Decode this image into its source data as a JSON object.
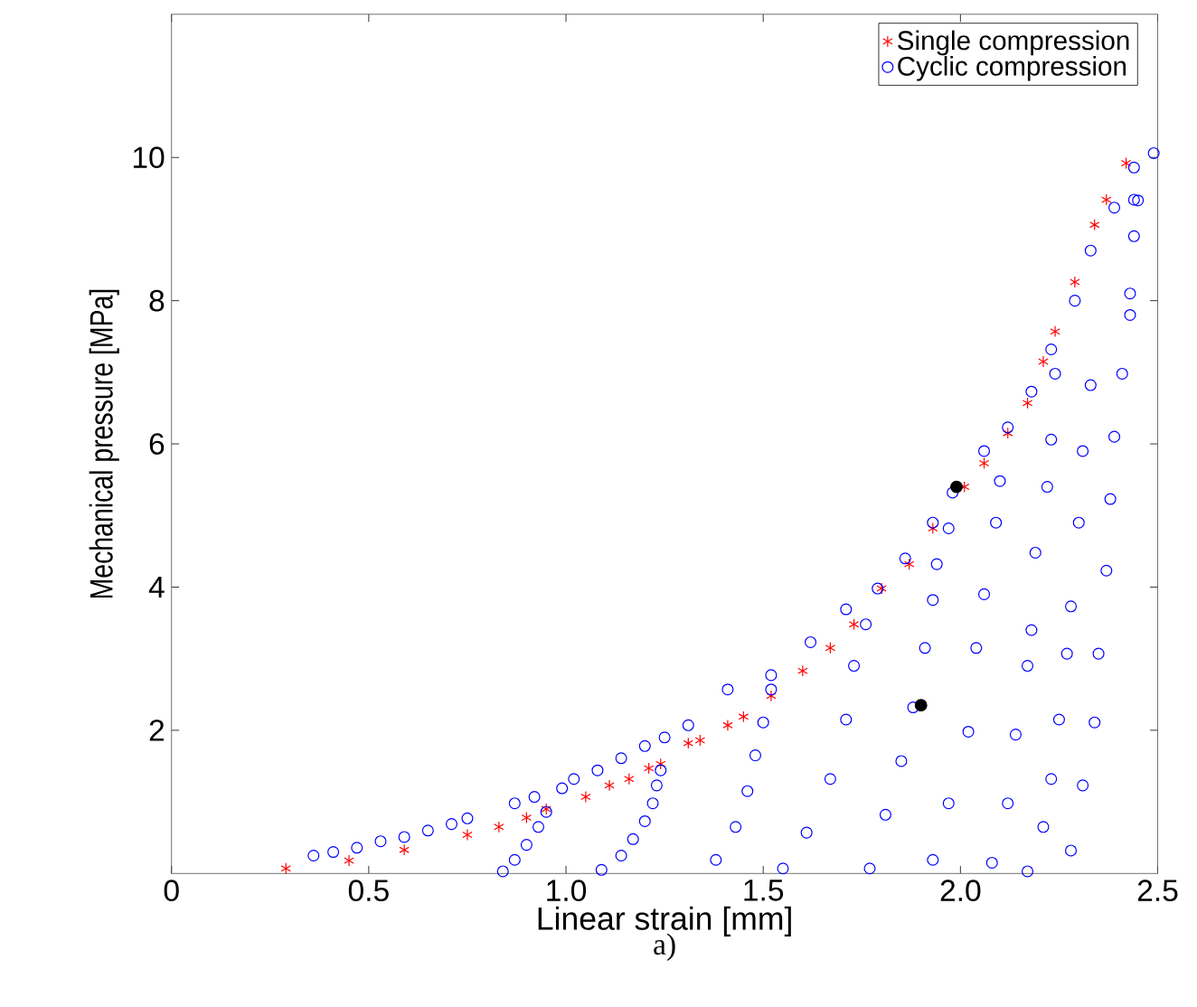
{
  "chart_data": {
    "type": "scatter",
    "xlabel": "Linear strain [mm]",
    "ylabel": "Mechanical pressure  [MPa]",
    "annotations": [
      "a)"
    ],
    "xlim": [
      0,
      2.5
    ],
    "ylim": [
      0,
      12
    ],
    "xticks": [
      0,
      0.5,
      {
        "value": 1,
        "label": "1.0"
      },
      1.5,
      {
        "value": 2,
        "label": "2.0"
      },
      2.5
    ],
    "yticks": [
      2,
      4,
      6,
      8,
      10
    ],
    "legend": "top right",
    "series": [
      {
        "name": "Single compression",
        "color": "#ff0000",
        "marker": "cross",
        "x": [
          0.29,
          0.45,
          0.59,
          0.75,
          0.83,
          0.9,
          0.95,
          1.05,
          1.11,
          1.16,
          1.21,
          1.24,
          1.31,
          1.34,
          1.41,
          1.45,
          1.52,
          1.6,
          1.67,
          1.73,
          1.8,
          1.87,
          1.93,
          2.01,
          2.06,
          2.12,
          2.17,
          2.21,
          2.24,
          2.29,
          2.34,
          2.37,
          2.42
        ],
        "values": [
          0.07,
          0.18,
          0.33,
          0.54,
          0.65,
          0.78,
          0.9,
          1.07,
          1.23,
          1.32,
          1.47,
          1.53,
          1.82,
          1.86,
          2.07,
          2.19,
          2.48,
          2.83,
          3.15,
          3.48,
          3.98,
          4.32,
          4.82,
          5.4,
          5.73,
          6.15,
          6.57,
          7.15,
          7.57,
          8.26,
          9.06,
          9.41,
          9.92
        ]
      },
      {
        "name": "Cyclic compression",
        "color": "#0000ff",
        "marker": "circle",
        "x": [
          0.36,
          0.41,
          0.47,
          0.53,
          0.59,
          0.65,
          0.71,
          0.75,
          0.84,
          0.87,
          0.9,
          0.93,
          0.95,
          0.87,
          0.92,
          0.99,
          1.02,
          1.08,
          1.14,
          1.2,
          1.25,
          1.31,
          1.41,
          1.52,
          1.62,
          1.71,
          1.79,
          1.86,
          1.93,
          1.98,
          2.06,
          2.12,
          2.18,
          2.23,
          2.29,
          2.33,
          2.39,
          2.44,
          2.49,
          1.09,
          1.14,
          1.17,
          1.2,
          1.22,
          1.23,
          1.24,
          1.38,
          1.43,
          1.46,
          1.48,
          1.5,
          1.52,
          1.55,
          1.61,
          1.67,
          1.71,
          1.73,
          1.76,
          1.77,
          1.81,
          1.85,
          1.88,
          1.91,
          1.93,
          1.94,
          1.97,
          1.93,
          1.97,
          2.02,
          2.04,
          2.06,
          2.09,
          2.1,
          2.08,
          2.12,
          2.14,
          2.17,
          2.18,
          2.19,
          2.22,
          2.23,
          2.24,
          2.17,
          2.21,
          2.23,
          2.25,
          2.27,
          2.28,
          2.3,
          2.31,
          2.33,
          2.28,
          2.31,
          2.34,
          2.35,
          2.37,
          2.38,
          2.39,
          2.41,
          2.43,
          2.43,
          2.44,
          2.45,
          2.44
        ],
        "values": [
          0.25,
          0.3,
          0.36,
          0.45,
          0.51,
          0.6,
          0.69,
          0.77,
          0.03,
          0.19,
          0.4,
          0.65,
          0.86,
          0.98,
          1.07,
          1.19,
          1.32,
          1.44,
          1.61,
          1.78,
          1.9,
          2.07,
          2.57,
          2.77,
          3.23,
          3.69,
          3.98,
          4.4,
          4.9,
          5.32,
          5.9,
          6.23,
          6.73,
          7.32,
          8.0,
          8.7,
          9.3,
          9.86,
          10.06,
          0.05,
          0.25,
          0.48,
          0.73,
          0.98,
          1.23,
          1.44,
          0.19,
          0.65,
          1.15,
          1.65,
          2.11,
          2.57,
          0.07,
          0.57,
          1.32,
          2.15,
          2.9,
          3.48,
          0.07,
          0.82,
          1.57,
          2.32,
          3.15,
          3.82,
          4.32,
          4.82,
          0.19,
          0.98,
          1.98,
          3.15,
          3.9,
          4.9,
          5.48,
          0.15,
          0.98,
          1.94,
          2.9,
          3.4,
          4.48,
          5.4,
          6.06,
          6.98,
          0.03,
          0.65,
          1.32,
          2.15,
          3.07,
          3.73,
          4.9,
          5.9,
          6.82,
          0.32,
          1.23,
          2.11,
          3.07,
          4.23,
          5.23,
          6.1,
          6.98,
          7.8,
          8.1,
          8.9,
          9.4,
          9.41
        ]
      },
      {
        "color": "#000000",
        "marker": "circle",
        "x": [
          1.99,
          1.9
        ],
        "values": [
          5.4,
          2.35
        ]
      }
    ]
  }
}
